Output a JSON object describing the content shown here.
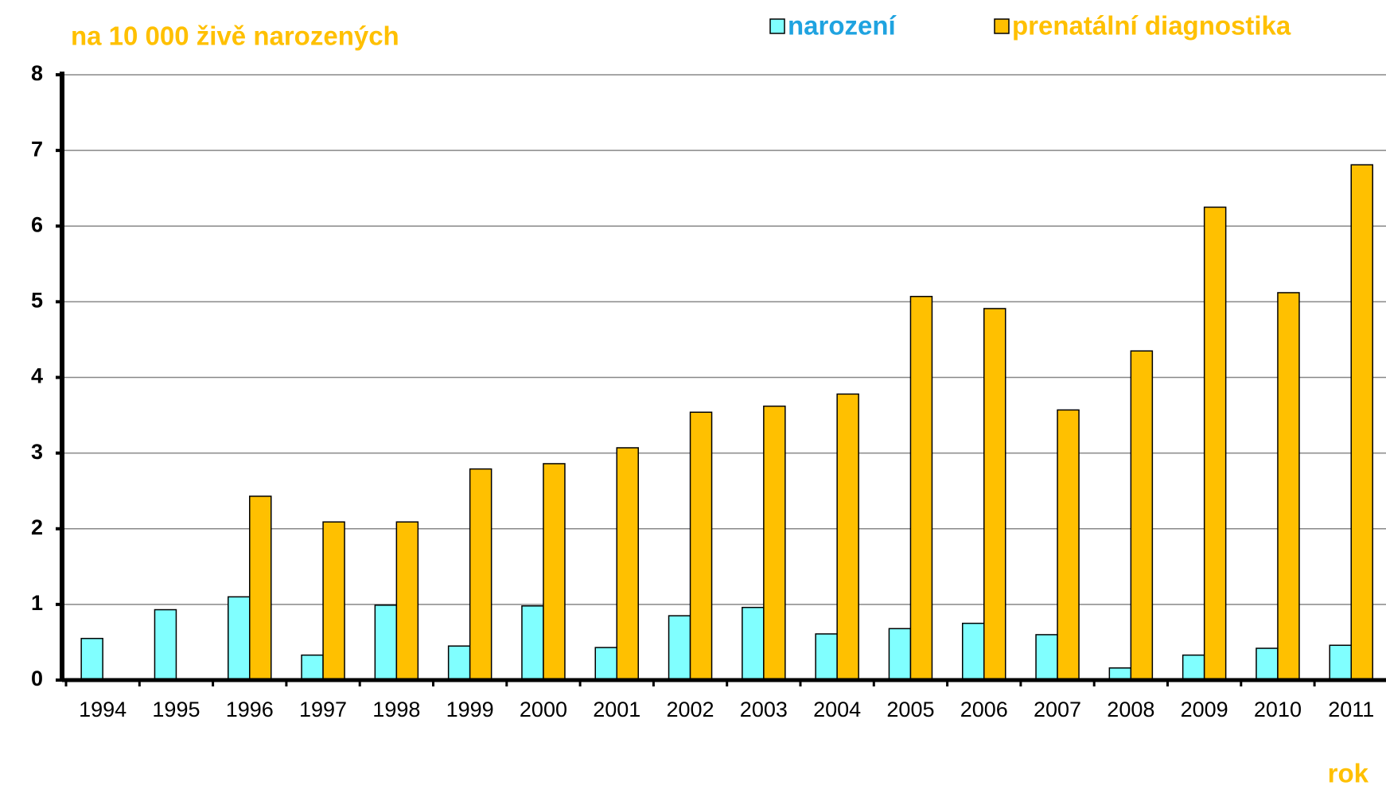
{
  "chart_data": {
    "type": "bar",
    "ylabel": "na 10 000 živě narozených",
    "xlabel": "rok",
    "categories": [
      "1994",
      "1995",
      "1996",
      "1997",
      "1998",
      "1999",
      "2000",
      "2001",
      "2002",
      "2003",
      "2004",
      "2005",
      "2006",
      "2007",
      "2008",
      "2009",
      "2010",
      "2011"
    ],
    "series": [
      {
        "name": "narození",
        "color": "#80ffff",
        "legend_text_color": "#1fa3e0",
        "values": [
          0.55,
          0.93,
          1.1,
          0.33,
          0.99,
          0.45,
          0.98,
          0.43,
          0.85,
          0.96,
          0.61,
          0.68,
          0.75,
          0.6,
          0.16,
          0.33,
          0.42,
          0.46
        ]
      },
      {
        "name": "prenatální diagnostika",
        "color": "#ffc000",
        "legend_text_color": "#ffc000",
        "values": [
          null,
          null,
          2.43,
          2.09,
          2.09,
          2.79,
          2.86,
          3.07,
          3.54,
          3.62,
          3.78,
          5.07,
          4.91,
          3.57,
          4.35,
          6.25,
          5.12,
          6.81
        ]
      }
    ],
    "ylim": [
      0,
      8
    ],
    "yticks": [
      0,
      1,
      2,
      3,
      4,
      5,
      6,
      7,
      8
    ],
    "grid": true
  }
}
